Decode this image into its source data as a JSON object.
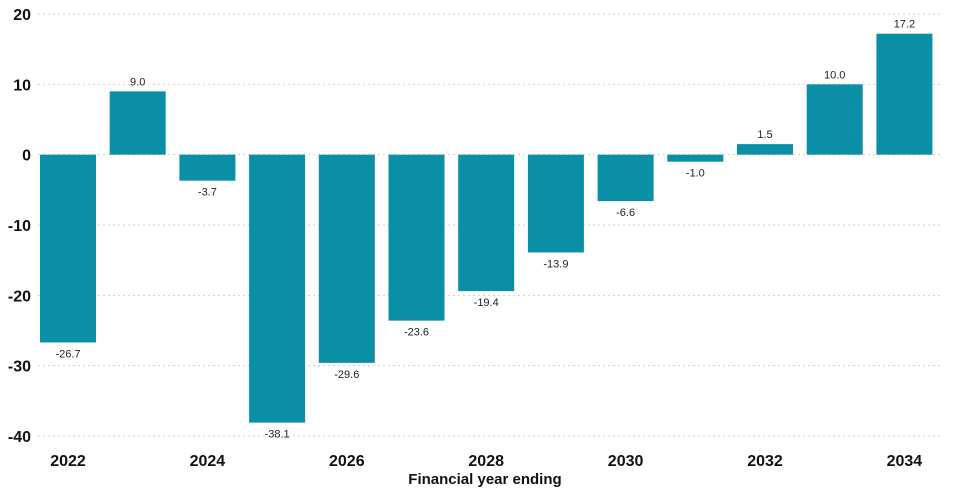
{
  "chart_data": {
    "type": "bar",
    "categories": [
      "2022",
      "2023",
      "2024",
      "2025",
      "2026",
      "2027",
      "2028",
      "2029",
      "2030",
      "2031",
      "2032",
      "2033",
      "2034"
    ],
    "values": [
      -26.7,
      9.0,
      -3.7,
      -38.1,
      -29.6,
      -23.6,
      -19.4,
      -13.9,
      -6.6,
      -1.0,
      1.5,
      10.0,
      17.2
    ],
    "data_labels": [
      "-26.7",
      "9.0",
      "-3.7",
      "-38.1",
      "-29.6",
      "-23.6",
      "-19.4",
      "-13.9",
      "-6.6",
      "-1.0",
      "1.5",
      "10.0",
      "17.2"
    ],
    "x_tick_labels": [
      "2022",
      "",
      "2024",
      "",
      "2026",
      "",
      "2028",
      "",
      "2030",
      "",
      "2032",
      "",
      "2034"
    ],
    "y_ticks": [
      20,
      10,
      0,
      -10,
      -20,
      -30,
      -40
    ],
    "ylim": [
      -40,
      20
    ],
    "xlabel": "Financial year ending",
    "ylabel": "",
    "title": "",
    "grid": true,
    "bar_color": "#0a8fa6"
  }
}
